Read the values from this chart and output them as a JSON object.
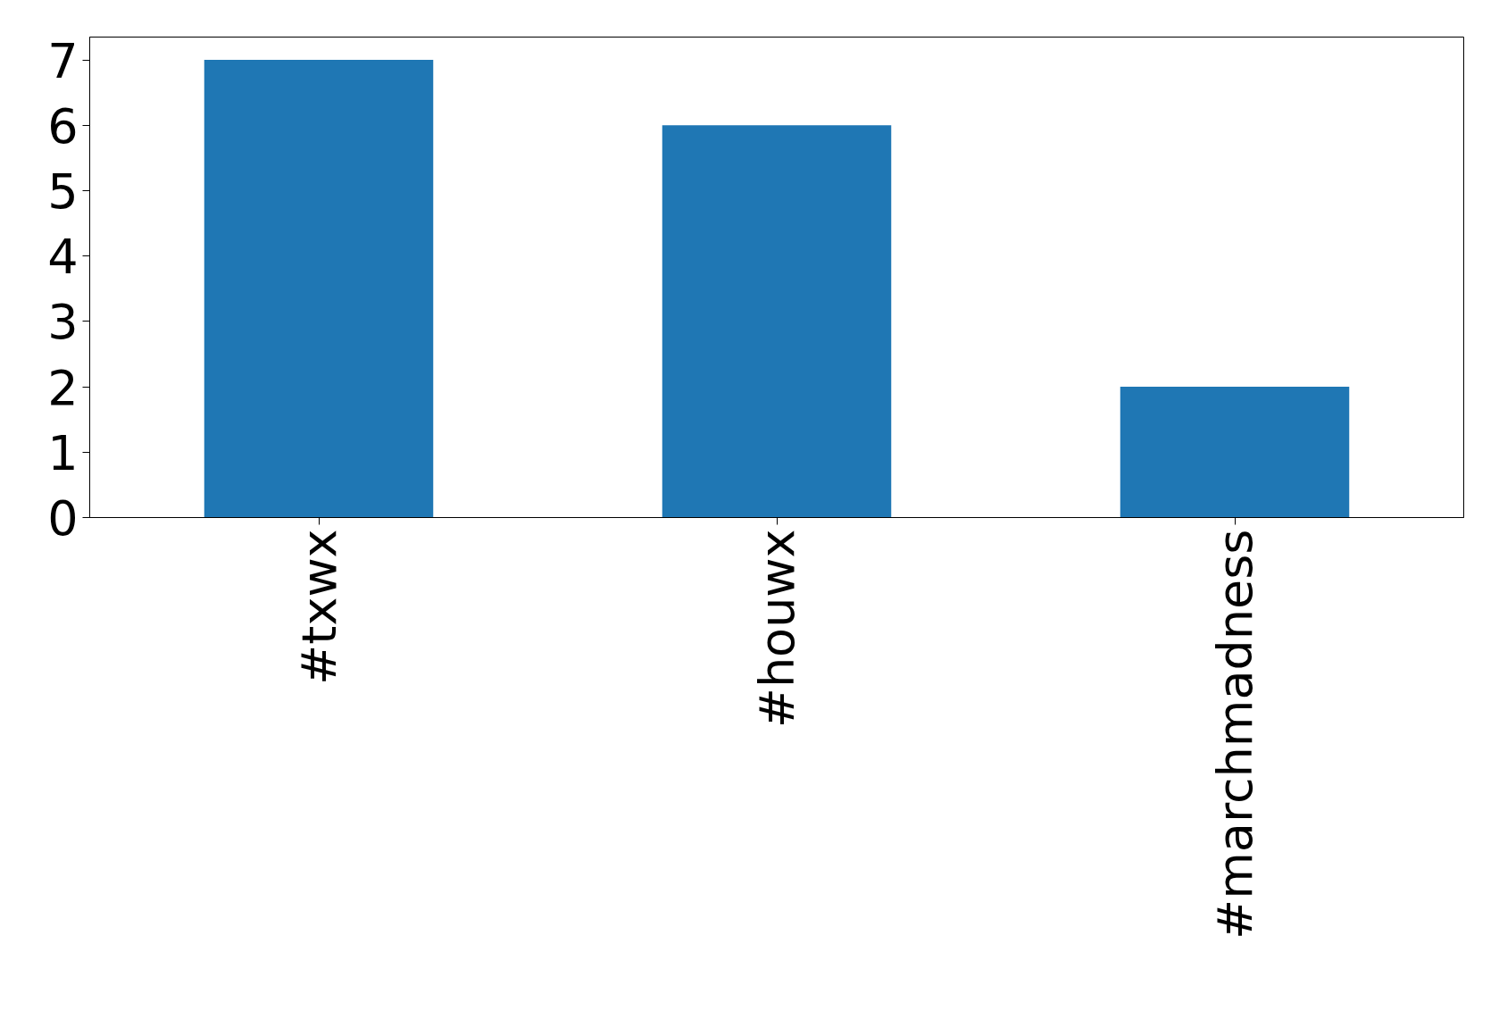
{
  "chart_data": {
    "type": "bar",
    "categories": [
      "#txwx",
      "#houwx",
      "#marchmadness"
    ],
    "values": [
      7,
      6,
      2
    ],
    "color": "#1f77b4",
    "ylim": [
      0,
      7.35
    ],
    "yticks": [
      0,
      1,
      2,
      3,
      4,
      5,
      6,
      7
    ],
    "grid": false
  }
}
